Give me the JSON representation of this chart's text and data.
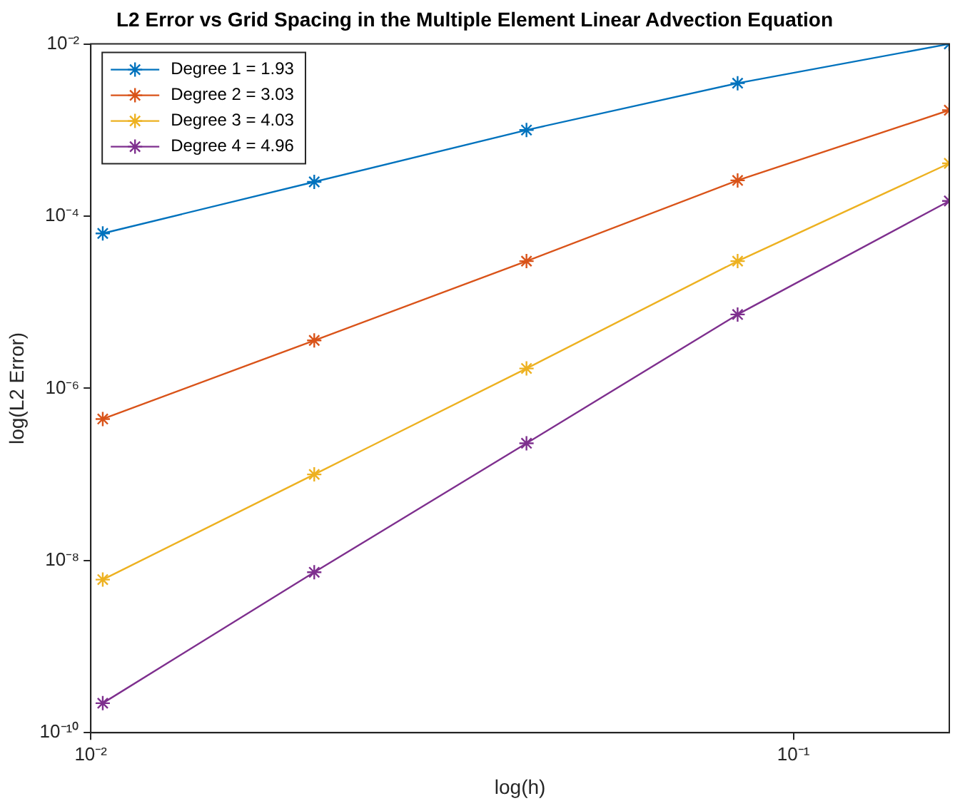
{
  "chart_data": {
    "type": "line",
    "title": "L2 Error vs Grid Spacing in the Multiple Element Linear Advection Equation",
    "xlabel": "log(h)",
    "ylabel": "log(L2 Error)",
    "x": [
      0.0104,
      0.0208,
      0.0417,
      0.0833,
      0.1667
    ],
    "series": [
      {
        "name": "Degree 1 = 1.93",
        "color": "#0072bd",
        "values": [
          6.3e-05,
          0.00025,
          0.001,
          0.0035,
          0.01
        ]
      },
      {
        "name": "Degree 2 = 3.03",
        "color": "#d95319",
        "values": [
          4.4e-07,
          3.6e-06,
          3e-05,
          0.00026,
          0.0017
        ]
      },
      {
        "name": "Degree 3 = 4.03",
        "color": "#edb120",
        "values": [
          6e-09,
          1e-07,
          1.7e-06,
          3e-05,
          0.00041
        ]
      },
      {
        "name": "Degree 4 = 4.96",
        "color": "#7e2f8e",
        "values": [
          2.2e-10,
          7.3e-09,
          2.3e-07,
          7.2e-06,
          0.00015
        ]
      }
    ],
    "log": "xy",
    "xlim": [
      0.01,
      0.1667
    ],
    "ylim": [
      1e-10,
      0.01
    ],
    "xticks": [
      {
        "value": 0.01,
        "label": "10⁻²"
      },
      {
        "value": 0.1,
        "label": "10⁻¹"
      }
    ],
    "yticks": [
      {
        "value": 1e-10,
        "label": "10⁻¹⁰"
      },
      {
        "value": 1e-08,
        "label": "10⁻⁸"
      },
      {
        "value": 1e-06,
        "label": "10⁻⁶"
      },
      {
        "value": 0.0001,
        "label": "10⁻⁴"
      },
      {
        "value": 0.01,
        "label": "10⁻²"
      }
    ],
    "grid": false,
    "legend": "top left",
    "marker": "cross",
    "line_style": "solid"
  }
}
